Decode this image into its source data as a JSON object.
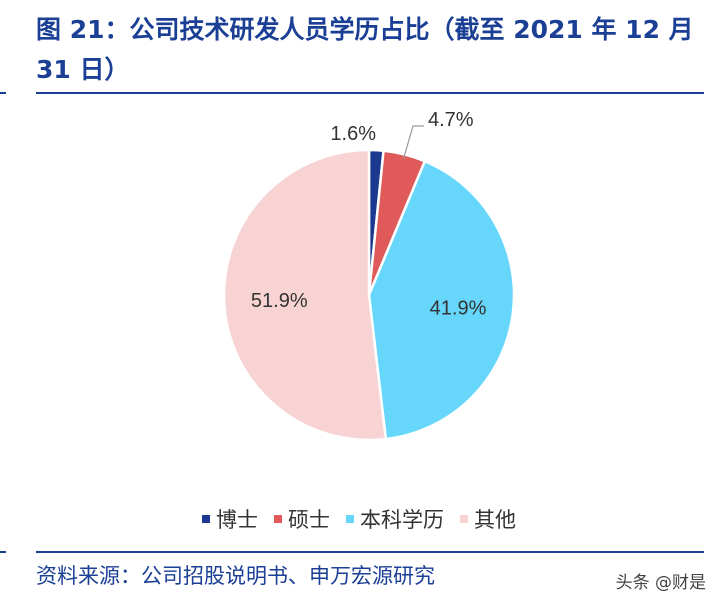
{
  "title": "图 21：公司技术研发人员学历占比（截至 2021 年 12 月 31 日）",
  "source": "资料来源：公司招股说明书、申万宏源研究",
  "watermark": "头条 @财是",
  "chart_data": {
    "type": "pie",
    "title": "图 21：公司技术研发人员学历占比（截至 2021 年 12 月 31 日）",
    "start_angle_deg": 0,
    "direction": "clockwise",
    "legend_position": "bottom",
    "slices": [
      {
        "label": "博士",
        "value": 1.6,
        "display": "1.6%",
        "color": "#1b3a8f"
      },
      {
        "label": "硕士",
        "value": 4.7,
        "display": "4.7%",
        "color": "#e05a5a"
      },
      {
        "label": "本科学历",
        "value": 41.9,
        "display": "41.9%",
        "color": "#67d6fb"
      },
      {
        "label": "其他",
        "value": 51.9,
        "display": "51.9%",
        "color": "#f8d3d4"
      }
    ]
  }
}
